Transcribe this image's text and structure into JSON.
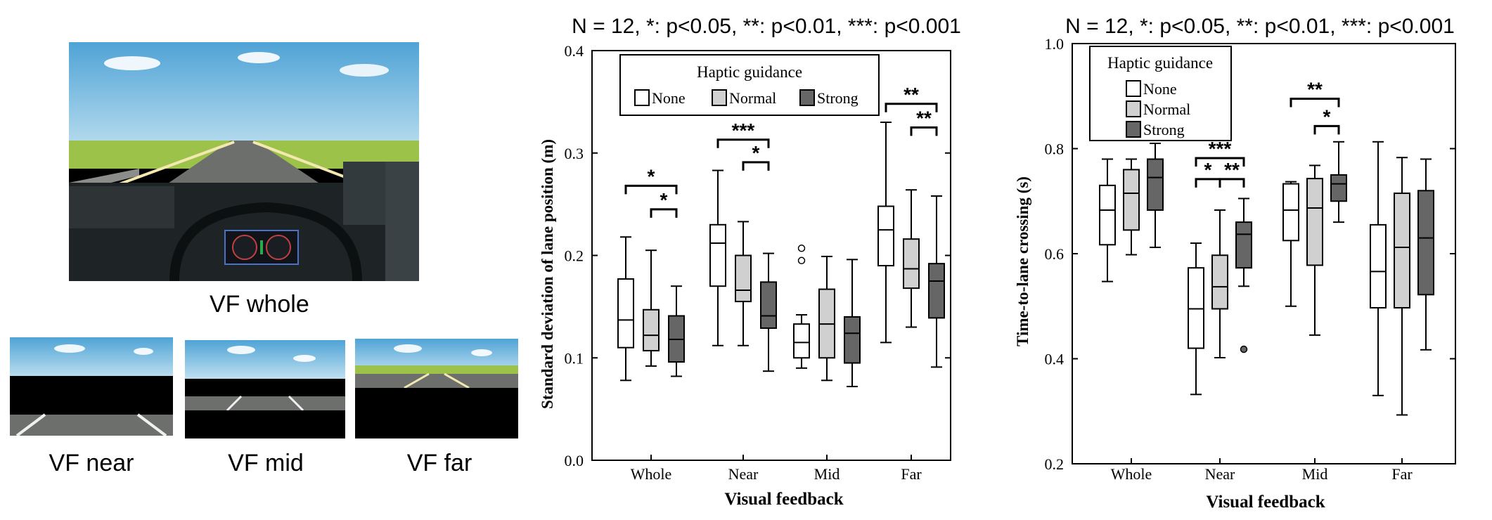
{
  "photos": {
    "whole_caption": "VF whole",
    "near_caption": "VF near",
    "mid_caption": "VF mid",
    "far_caption": "VF far"
  },
  "colors": {
    "none": "#ffffff",
    "normal": "#d0d0d0",
    "strong": "#666666",
    "sky": "#6fb4dd",
    "grass": "#9cc24a",
    "road": "#6d6f6c"
  },
  "chart_data": [
    {
      "type": "boxplot",
      "title": "N = 12, *: p<0.05, **: p<0.01, ***: p<0.001",
      "xlabel": "Visual feedback",
      "ylabel": "Standard deviation of lane position (m)",
      "ylim": [
        0.0,
        0.4
      ],
      "yticks": [
        "0.0",
        "0.1",
        "0.2",
        "0.3",
        "0.4"
      ],
      "categories": [
        "Whole",
        "Near",
        "Mid",
        "Far"
      ],
      "legend": {
        "title": "Haptic guidance",
        "entries": [
          "None",
          "Normal",
          "Strong"
        ],
        "placement": "top",
        "layout": "horizontal"
      },
      "series": [
        {
          "name": "None",
          "boxes": [
            {
              "min": 0.078,
              "q1": 0.11,
              "median": 0.137,
              "q3": 0.177,
              "max": 0.218,
              "outliers": []
            },
            {
              "min": 0.112,
              "q1": 0.17,
              "median": 0.212,
              "q3": 0.23,
              "max": 0.283,
              "outliers": []
            },
            {
              "min": 0.09,
              "q1": 0.1,
              "median": 0.115,
              "q3": 0.133,
              "max": 0.142,
              "outliers": [
                0.195,
                0.207
              ]
            },
            {
              "min": 0.115,
              "q1": 0.19,
              "median": 0.225,
              "q3": 0.248,
              "max": 0.33,
              "outliers": []
            }
          ]
        },
        {
          "name": "Normal",
          "boxes": [
            {
              "min": 0.092,
              "q1": 0.107,
              "median": 0.122,
              "q3": 0.147,
              "max": 0.205,
              "outliers": []
            },
            {
              "min": 0.112,
              "q1": 0.155,
              "median": 0.166,
              "q3": 0.2,
              "max": 0.233,
              "outliers": []
            },
            {
              "min": 0.078,
              "q1": 0.1,
              "median": 0.133,
              "q3": 0.167,
              "max": 0.199,
              "outliers": []
            },
            {
              "min": 0.13,
              "q1": 0.168,
              "median": 0.187,
              "q3": 0.216,
              "max": 0.264,
              "outliers": []
            }
          ]
        },
        {
          "name": "Strong",
          "boxes": [
            {
              "min": 0.082,
              "q1": 0.096,
              "median": 0.118,
              "q3": 0.141,
              "max": 0.17,
              "outliers": []
            },
            {
              "min": 0.087,
              "q1": 0.129,
              "median": 0.141,
              "q3": 0.174,
              "max": 0.202,
              "outliers": []
            },
            {
              "min": 0.072,
              "q1": 0.095,
              "median": 0.124,
              "q3": 0.14,
              "max": 0.196,
              "outliers": []
            },
            {
              "min": 0.091,
              "q1": 0.139,
              "median": 0.175,
              "q3": 0.192,
              "max": 0.258,
              "outliers": []
            }
          ]
        }
      ],
      "significance": [
        {
          "group": 0,
          "from": 0,
          "to": 2,
          "label": "*",
          "y": 0.268
        },
        {
          "group": 0,
          "from": 1,
          "to": 2,
          "label": "*",
          "y": 0.245
        },
        {
          "group": 1,
          "from": 0,
          "to": 2,
          "label": "***",
          "y": 0.313
        },
        {
          "group": 1,
          "from": 1,
          "to": 2,
          "label": "*",
          "y": 0.291
        },
        {
          "group": 3,
          "from": 0,
          "to": 2,
          "label": "**",
          "y": 0.348
        },
        {
          "group": 3,
          "from": 1,
          "to": 2,
          "label": "**",
          "y": 0.325
        }
      ]
    },
    {
      "type": "boxplot",
      "title": "N = 12, *: p<0.05, **: p<0.01, ***: p<0.001",
      "xlabel": "Visual feedback",
      "ylabel": "Time-to-lane crossing (s)",
      "ylim": [
        0.2,
        1.0
      ],
      "yticks": [
        "0.2",
        "0.4",
        "0.6",
        "0.8",
        "1.0"
      ],
      "categories": [
        "Whole",
        "Near",
        "Mid",
        "Far"
      ],
      "legend": {
        "title": "Haptic guidance",
        "entries": [
          "None",
          "Normal",
          "Strong"
        ],
        "placement": "top-left",
        "layout": "vertical"
      },
      "series": [
        {
          "name": "None",
          "boxes": [
            {
              "min": 0.547,
              "q1": 0.617,
              "median": 0.683,
              "q3": 0.73,
              "max": 0.78,
              "outliers": []
            },
            {
              "min": 0.332,
              "q1": 0.42,
              "median": 0.495,
              "q3": 0.573,
              "max": 0.62,
              "outliers": []
            },
            {
              "min": 0.5,
              "q1": 0.625,
              "median": 0.683,
              "q3": 0.733,
              "max": 0.737,
              "outliers": []
            },
            {
              "min": 0.33,
              "q1": 0.497,
              "median": 0.566,
              "q3": 0.655,
              "max": 0.813,
              "outliers": []
            }
          ]
        },
        {
          "name": "Normal",
          "boxes": [
            {
              "min": 0.598,
              "q1": 0.645,
              "median": 0.715,
              "q3": 0.76,
              "max": 0.78,
              "outliers": []
            },
            {
              "min": 0.402,
              "q1": 0.495,
              "median": 0.537,
              "q3": 0.597,
              "max": 0.683,
              "outliers": []
            },
            {
              "min": 0.445,
              "q1": 0.578,
              "median": 0.687,
              "q3": 0.743,
              "max": 0.768,
              "outliers": []
            },
            {
              "min": 0.293,
              "q1": 0.497,
              "median": 0.612,
              "q3": 0.715,
              "max": 0.783,
              "outliers": []
            }
          ]
        },
        {
          "name": "Strong",
          "boxes": [
            {
              "min": 0.612,
              "q1": 0.683,
              "median": 0.745,
              "q3": 0.78,
              "max": 0.81,
              "outliers": []
            },
            {
              "min": 0.538,
              "q1": 0.573,
              "median": 0.637,
              "q3": 0.66,
              "max": 0.705,
              "outliers": [
                0.418
              ]
            },
            {
              "min": 0.66,
              "q1": 0.7,
              "median": 0.733,
              "q3": 0.75,
              "max": 0.813,
              "outliers": []
            },
            {
              "min": 0.417,
              "q1": 0.522,
              "median": 0.63,
              "q3": 0.72,
              "max": 0.78,
              "outliers": []
            }
          ]
        }
      ],
      "significance": [
        {
          "group": 1,
          "from": 0,
          "to": 2,
          "label": "***",
          "y": 0.782
        },
        {
          "group": 1,
          "from": 0,
          "to": 1,
          "label": "*",
          "y": 0.742
        },
        {
          "group": 1,
          "from": 1,
          "to": 2,
          "label": "**",
          "y": 0.742
        },
        {
          "group": 2,
          "from": 0,
          "to": 2,
          "label": "**",
          "y": 0.895
        },
        {
          "group": 2,
          "from": 1,
          "to": 2,
          "label": "*",
          "y": 0.843
        }
      ]
    }
  ]
}
